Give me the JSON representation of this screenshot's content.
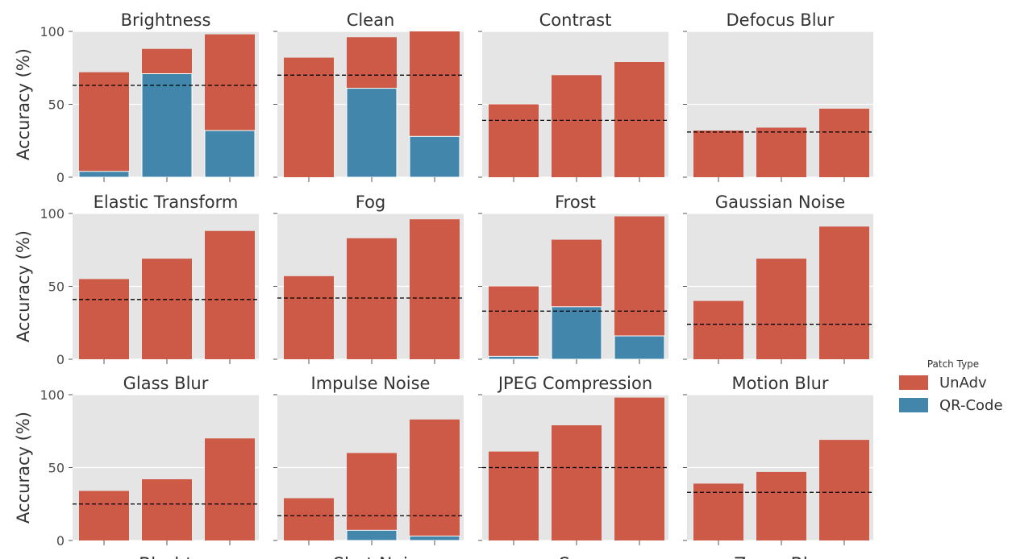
{
  "chart_data": {
    "type": "bar",
    "layout": "facet-grid-3x4-stacked",
    "ylabel": "Accuracy (%)",
    "ylim": [
      0,
      100
    ],
    "yticks": [
      0,
      50,
      100
    ],
    "grid": true,
    "legend": {
      "title": "Patch Type",
      "position": "right",
      "entries": [
        {
          "label": "UnAdv",
          "color": "#CC5A47"
        },
        {
          "label": "QR-Code",
          "color": "#4386AC"
        }
      ]
    },
    "colors": {
      "background": "#E5E5E5",
      "gridline": "#FFFFFF",
      "unadv": "#CC5A47",
      "qrcode": "#4386AC",
      "baseline": "#000000"
    },
    "bottom_partial_labels": [
      "Blurbt",
      "Shot Noi",
      "Sno",
      "Zoom Blur"
    ],
    "panels": [
      {
        "title": "Brightness",
        "unadv": [
          72,
          88,
          98
        ],
        "qrcode": [
          4,
          71,
          32
        ],
        "baseline": 63
      },
      {
        "title": "Clean",
        "unadv": [
          82,
          96,
          100
        ],
        "qrcode": [
          0,
          61,
          28
        ],
        "baseline": 70
      },
      {
        "title": "Contrast",
        "unadv": [
          50,
          70,
          79
        ],
        "qrcode": [
          0,
          0,
          0
        ],
        "baseline": 39
      },
      {
        "title": "Defocus Blur",
        "unadv": [
          32,
          34,
          47
        ],
        "qrcode": [
          0,
          0,
          0
        ],
        "baseline": 31
      },
      {
        "title": "Elastic Transform",
        "unadv": [
          55,
          69,
          88
        ],
        "qrcode": [
          0,
          0,
          0
        ],
        "baseline": 41
      },
      {
        "title": "Fog",
        "unadv": [
          57,
          83,
          96
        ],
        "qrcode": [
          0,
          0,
          0
        ],
        "baseline": 42
      },
      {
        "title": "Frost",
        "unadv": [
          50,
          82,
          98
        ],
        "qrcode": [
          2,
          36,
          16
        ],
        "baseline": 33
      },
      {
        "title": "Gaussian Noise",
        "unadv": [
          40,
          69,
          91
        ],
        "qrcode": [
          0,
          0,
          0
        ],
        "baseline": 24
      },
      {
        "title": "Glass Blur",
        "unadv": [
          34,
          42,
          70
        ],
        "qrcode": [
          0,
          0,
          0
        ],
        "baseline": 25
      },
      {
        "title": "Impulse Noise",
        "unadv": [
          29,
          60,
          83
        ],
        "qrcode": [
          0,
          7,
          3
        ],
        "baseline": 17
      },
      {
        "title": "JPEG Compression",
        "unadv": [
          61,
          79,
          98
        ],
        "qrcode": [
          0,
          0,
          0
        ],
        "baseline": 50
      },
      {
        "title": "Motion Blur",
        "unadv": [
          39,
          47,
          69
        ],
        "qrcode": [
          0,
          0,
          0
        ],
        "baseline": 33
      }
    ]
  }
}
